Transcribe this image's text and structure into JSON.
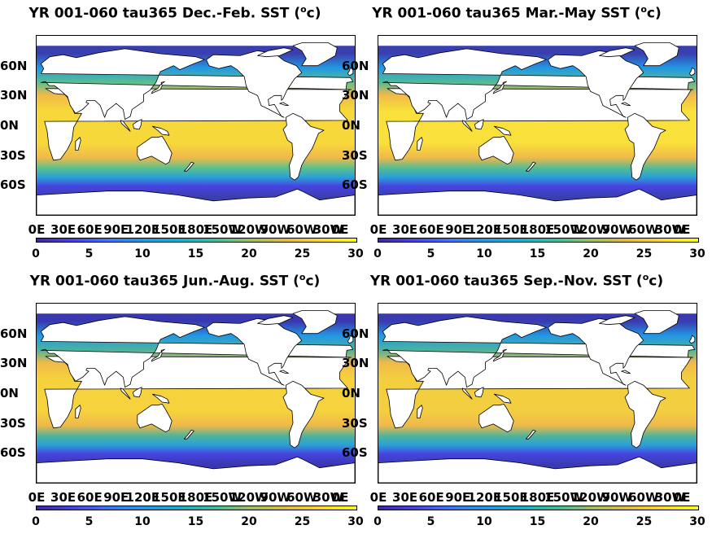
{
  "panels": [
    {
      "id": "djf",
      "title_text": "YR 001-060 tau365 Dec.-Feb. SST (",
      "title_sup": "o",
      "title_unit": "c)",
      "band_tropic": "#f7d83a",
      "band_mid": "#59c08e",
      "band_polar": "#3b3fae"
    },
    {
      "id": "mam",
      "title_text": "YR 001-060 tau365 Mar.-May SST (",
      "title_sup": "o",
      "title_unit": "c)",
      "band_tropic": "#f9e03a",
      "band_mid": "#52bb95",
      "band_polar": "#3a3fb0"
    },
    {
      "id": "jja",
      "title_text": "YR 001-060 tau365 Jun.-Aug. SST (",
      "title_sup": "o",
      "title_unit": "c)",
      "band_tropic": "#f6d23d",
      "band_mid": "#4db39c",
      "band_polar": "#3938b0"
    },
    {
      "id": "son",
      "title_text": "YR 001-060 tau365 Sep.-Nov. SST (",
      "title_sup": "o",
      "title_unit": "c)",
      "band_tropic": "#f3cf40",
      "band_mid": "#4fb39b",
      "band_polar": "#3a3bb0"
    }
  ],
  "lat_labels": [
    "60N",
    "30N",
    "0N",
    "30S",
    "60S"
  ],
  "lat_values": [
    60,
    30,
    0,
    -30,
    -60
  ],
  "lon_labels": [
    "0E",
    "30E",
    "60E",
    "90E",
    "120E",
    "150E",
    "180E",
    "150W",
    "120W",
    "90W",
    "60W",
    "30W",
    "0E"
  ],
  "lon_values": [
    0,
    30,
    60,
    90,
    120,
    150,
    180,
    210,
    240,
    270,
    300,
    330,
    360
  ],
  "lat_range": [
    -90,
    90
  ],
  "lon_range": [
    0,
    360
  ],
  "colorbar": {
    "ticks": [
      "0",
      "5",
      "10",
      "15",
      "20",
      "25",
      "30"
    ],
    "tick_values": [
      0,
      5,
      10,
      15,
      20,
      25,
      30
    ],
    "range": [
      0,
      30
    ],
    "colors": [
      "#3e26a8",
      "#4743e1",
      "#3e73fc",
      "#2298e4",
      "#13b0ca",
      "#3cbc9d",
      "#9bbf61",
      "#e4bb3a",
      "#fbd52e",
      "#f9fb15"
    ]
  },
  "colors": {
    "land": "#ffffff",
    "coast": "#000000",
    "ocean_subtropic": "#f0b94a",
    "ocean_midlat_blue": "#2aa0d8"
  }
}
